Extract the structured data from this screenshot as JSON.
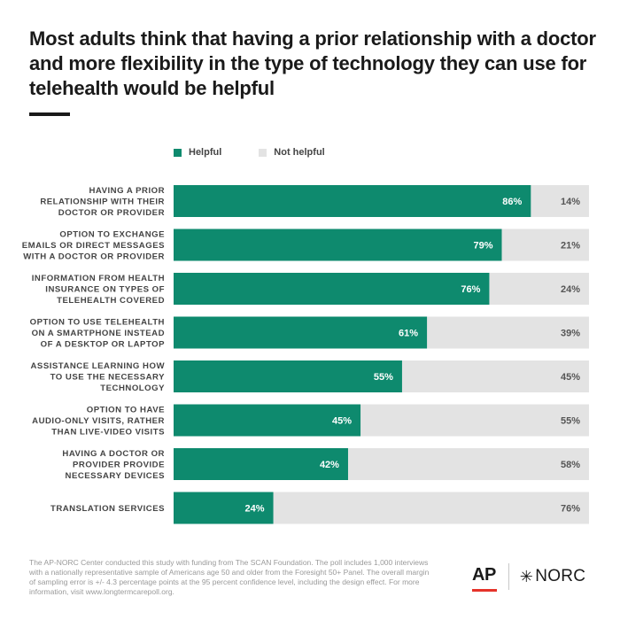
{
  "header": {
    "title": "Most adults think that having a prior relationship with a doctor and more flexibility in the type of technology they can use for telehealth would be helpful"
  },
  "colors": {
    "helpful": "#0e8a6e",
    "not_helpful": "#e3e3e3",
    "label_text": "#444444",
    "value_text_light": "#ffffff",
    "value_text_dark": "#555555",
    "ap_red": "#e5332a"
  },
  "chart_data": {
    "type": "bar",
    "orientation": "horizontal",
    "stacked": true,
    "categories": [
      [
        "HAVING A PRIOR",
        "RELATIONSHIP WITH THEIR",
        "DOCTOR OR PROVIDER"
      ],
      [
        "OPTION TO EXCHANGE",
        "EMAILS OR DIRECT MESSAGES",
        "WITH A DOCTOR OR PROVIDER"
      ],
      [
        "INFORMATION FROM HEALTH",
        "INSURANCE ON TYPES OF",
        "TELEHEALTH COVERED"
      ],
      [
        "OPTION TO USE TELEHEALTH",
        "ON A SMARTPHONE INSTEAD",
        "OF A DESKTOP OR LAPTOP"
      ],
      [
        "ASSISTANCE LEARNING HOW",
        "TO USE THE NECESSARY",
        "TECHNOLOGY"
      ],
      [
        "OPTION TO HAVE",
        "AUDIO-ONLY VISITS, RATHER",
        "THAN LIVE-VIDEO VISITS"
      ],
      [
        "HAVING A DOCTOR OR",
        "PROVIDER PROVIDE",
        "NECESSARY DEVICES"
      ],
      [
        "TRANSLATION SERVICES"
      ]
    ],
    "series": [
      {
        "name": "Helpful",
        "values": [
          86,
          79,
          76,
          61,
          55,
          45,
          42,
          24
        ]
      },
      {
        "name": "Not helpful",
        "values": [
          14,
          21,
          24,
          39,
          45,
          55,
          58,
          76
        ]
      }
    ],
    "value_suffix": "%",
    "xlim": [
      0,
      100
    ],
    "legend": "top",
    "grid": false
  },
  "footnote": "The AP-NORC Center conducted this study with funding from The SCAN Foundation. The poll includes 1,000 interviews with a nationally representative sample of Americans age 50 and older from the Foresight 50+ Panel. The overall margin of sampling error is +/- 4.3 percentage points at the 95 percent confidence level, including the design effect. For more information, visit www.longtermcarepoll.org.",
  "logos": {
    "ap": "AP",
    "norc": "NORC",
    "norc_mark": "✳"
  }
}
